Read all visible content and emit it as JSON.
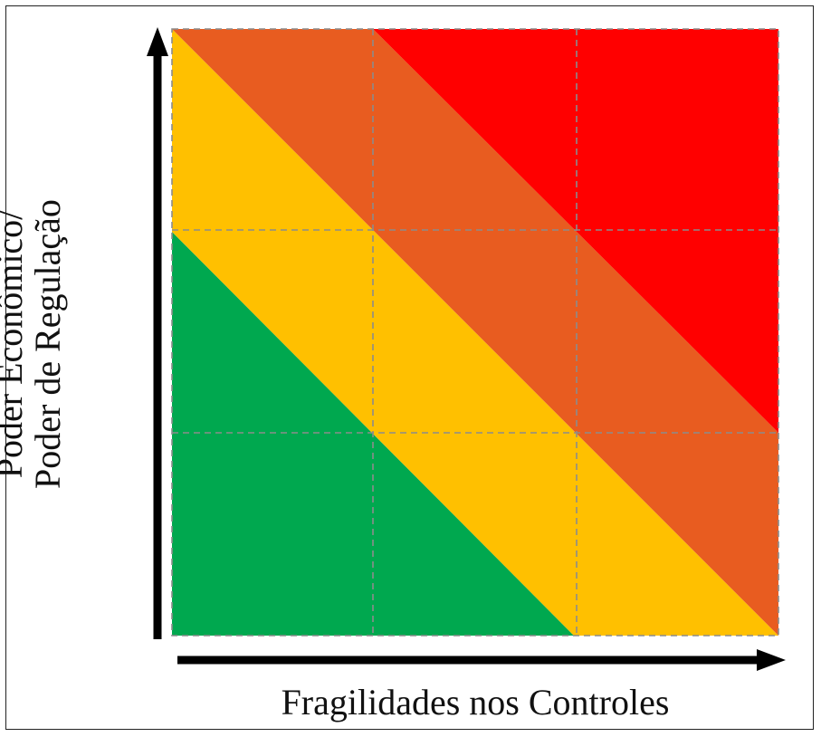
{
  "diagram": {
    "y_axis_label_line1": "Poder Econômico/",
    "y_axis_label_line2": "Poder de Regulação",
    "x_axis_label": "Fragilidades nos Controles",
    "grid": {
      "rows": 3,
      "cols": 3
    },
    "zone_colors": {
      "low": "#00A84F",
      "medium": "#FFC000",
      "high": "#E85C20",
      "critical": "#FF0000"
    },
    "grid_line_color": "#8C8C8C",
    "arrow_color": "#000000"
  }
}
